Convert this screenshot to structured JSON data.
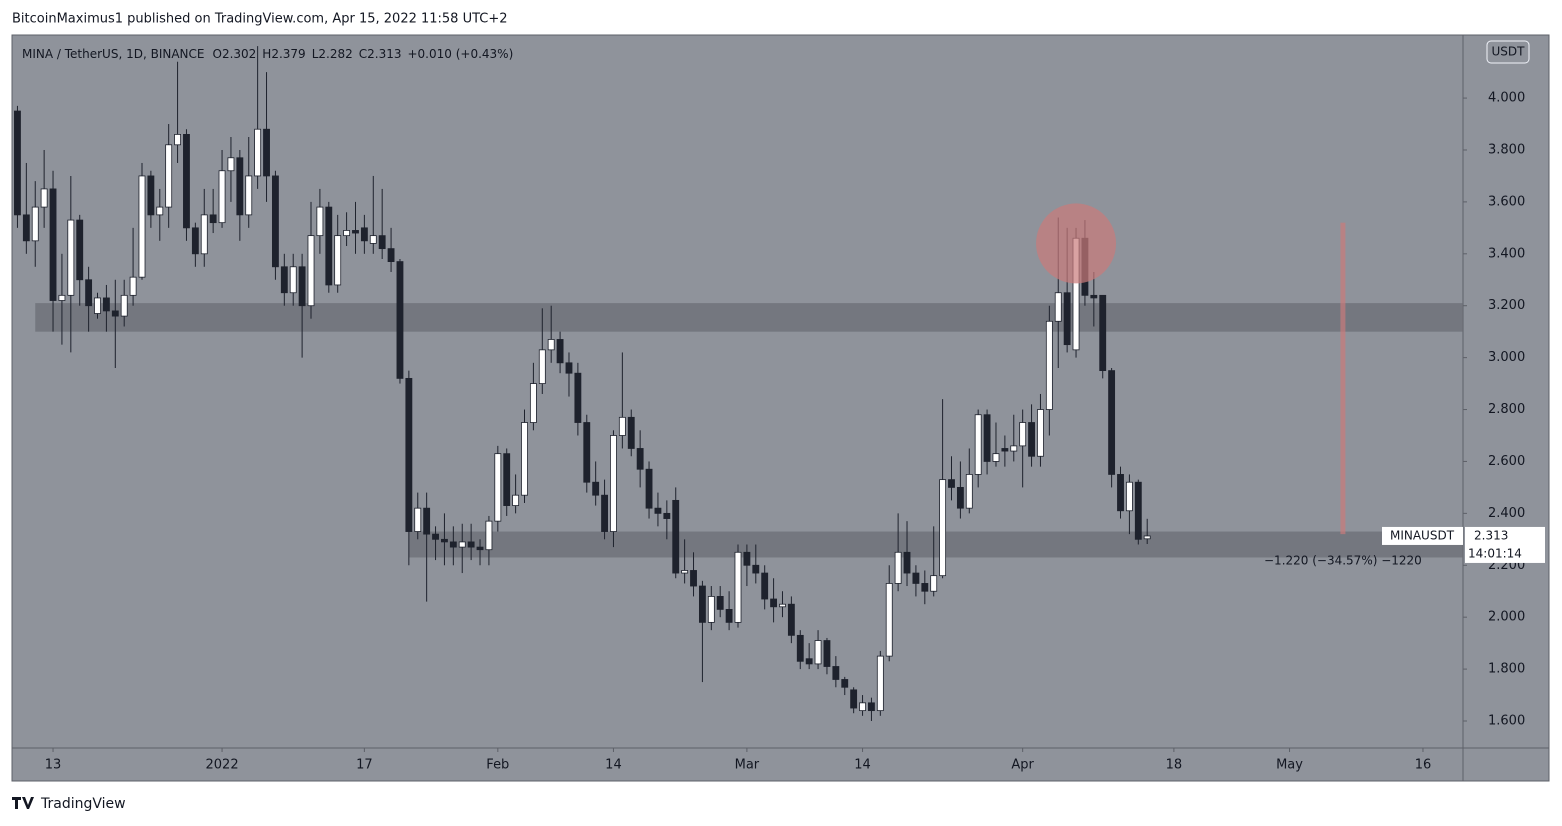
{
  "header": "BitcoinMaximus1 published on TradingView.com, Apr 15, 2022 11:58 UTC+2",
  "footer": "TradingView",
  "chart_data": {
    "type": "candlestick",
    "title": "MINA / TetherUS, 1D, BINANCE",
    "legend": [
      {
        "label": "O",
        "value": 2.302
      },
      {
        "label": "H",
        "value": 2.379
      },
      {
        "label": "L",
        "value": 2.282
      },
      {
        "label": "C",
        "value": 2.313
      }
    ],
    "change": "+0.010 (+0.43%)",
    "currency": "USDT",
    "symbol": "MINAUSDT",
    "last_price": 2.313,
    "countdown": "14:01:14",
    "measure": "−1.220 (−34.57%) −1220",
    "background": "#8f939b",
    "up_color": "#ffffff",
    "down_color": "#1e222d",
    "ylim": [
      1.496,
      4.243
    ],
    "yticks": [
      {
        "value": 1.6,
        "label": "1.600"
      },
      {
        "value": 1.8,
        "label": "1.800"
      },
      {
        "value": 2.0,
        "label": "2.000"
      },
      {
        "value": 2.2,
        "label": "2.200"
      },
      {
        "value": 2.4,
        "label": "2.400"
      },
      {
        "value": 2.6,
        "label": "2.600"
      },
      {
        "value": 2.8,
        "label": "2.800"
      },
      {
        "value": 3.0,
        "label": "3.000"
      },
      {
        "value": 3.2,
        "label": "3.200"
      },
      {
        "value": 3.4,
        "label": "3.400"
      },
      {
        "value": 3.6,
        "label": "3.600"
      },
      {
        "value": 3.8,
        "label": "3.800"
      },
      {
        "value": 4.0,
        "label": "4.000"
      }
    ],
    "xlim": [
      "2021-12-09",
      "2022-05-20"
    ],
    "xticks": [
      {
        "value": "2021-12-13",
        "label": "13"
      },
      {
        "value": "2022-01-01",
        "label": "2022"
      },
      {
        "value": "2022-01-17",
        "label": "17"
      },
      {
        "value": "2022-02-01",
        "label": "Feb"
      },
      {
        "value": "2022-02-14",
        "label": "14"
      },
      {
        "value": "2022-03-01",
        "label": "Mar"
      },
      {
        "value": "2022-03-14",
        "label": "14"
      },
      {
        "value": "2022-04-01",
        "label": "Apr"
      },
      {
        "value": "2022-04-18",
        "label": "18"
      },
      {
        "value": "2022-05-01",
        "label": "May"
      },
      {
        "value": "2022-05-16",
        "label": "16"
      }
    ],
    "zones": [
      {
        "low": 3.1,
        "high": 3.21,
        "start": "2021-12-11",
        "color": "#6b6e76"
      },
      {
        "low": 2.23,
        "high": 2.33,
        "start": "2022-01-22",
        "color": "#6b6e76"
      }
    ],
    "circle": {
      "date": "2022-04-07",
      "price": 3.44,
      "color": "#c97a7a"
    },
    "vline": {
      "date": "2022-05-07",
      "from": 2.32,
      "to": 3.52,
      "color": "#c97a7a"
    },
    "x": [
      "2021-12-09",
      "2021-12-10",
      "2021-12-11",
      "2021-12-12",
      "2021-12-13",
      "2021-12-14",
      "2021-12-15",
      "2021-12-16",
      "2021-12-17",
      "2021-12-18",
      "2021-12-19",
      "2021-12-20",
      "2021-12-21",
      "2021-12-22",
      "2021-12-23",
      "2021-12-24",
      "2021-12-25",
      "2021-12-26",
      "2021-12-27",
      "2021-12-28",
      "2021-12-29",
      "2021-12-30",
      "2021-12-31",
      "2022-01-01",
      "2022-01-02",
      "2022-01-03",
      "2022-01-04",
      "2022-01-05",
      "2022-01-06",
      "2022-01-07",
      "2022-01-08",
      "2022-01-09",
      "2022-01-10",
      "2022-01-11",
      "2022-01-12",
      "2022-01-13",
      "2022-01-14",
      "2022-01-15",
      "2022-01-16",
      "2022-01-17",
      "2022-01-18",
      "2022-01-19",
      "2022-01-20",
      "2022-01-21",
      "2022-01-22",
      "2022-01-23",
      "2022-01-24",
      "2022-01-25",
      "2022-01-26",
      "2022-01-27",
      "2022-01-28",
      "2022-01-29",
      "2022-01-30",
      "2022-01-31",
      "2022-02-01",
      "2022-02-02",
      "2022-02-03",
      "2022-02-04",
      "2022-02-05",
      "2022-02-06",
      "2022-02-07",
      "2022-02-08",
      "2022-02-09",
      "2022-02-10",
      "2022-02-11",
      "2022-02-12",
      "2022-02-13",
      "2022-02-14",
      "2022-02-15",
      "2022-02-16",
      "2022-02-17",
      "2022-02-18",
      "2022-02-19",
      "2022-02-20",
      "2022-02-21",
      "2022-02-22",
      "2022-02-23",
      "2022-02-24",
      "2022-02-25",
      "2022-02-26",
      "2022-02-27",
      "2022-02-28",
      "2022-03-01",
      "2022-03-02",
      "2022-03-03",
      "2022-03-04",
      "2022-03-05",
      "2022-03-06",
      "2022-03-07",
      "2022-03-08",
      "2022-03-09",
      "2022-03-10",
      "2022-03-11",
      "2022-03-12",
      "2022-03-13",
      "2022-03-14",
      "2022-03-15",
      "2022-03-16",
      "2022-03-17",
      "2022-03-18",
      "2022-03-19",
      "2022-03-20",
      "2022-03-21",
      "2022-03-22",
      "2022-03-23",
      "2022-03-24",
      "2022-03-25",
      "2022-03-26",
      "2022-03-27",
      "2022-03-28",
      "2022-03-29",
      "2022-03-30",
      "2022-03-31",
      "2022-04-01",
      "2022-04-02",
      "2022-04-03",
      "2022-04-04",
      "2022-04-05",
      "2022-04-06",
      "2022-04-07",
      "2022-04-08",
      "2022-04-09",
      "2022-04-10",
      "2022-04-11",
      "2022-04-12",
      "2022-04-13",
      "2022-04-14",
      "2022-04-15"
    ],
    "open": [
      3.95,
      3.55,
      3.45,
      3.58,
      3.65,
      3.22,
      3.24,
      3.53,
      3.3,
      3.17,
      3.23,
      3.18,
      3.16,
      3.24,
      3.31,
      3.7,
      3.55,
      3.58,
      3.82,
      3.86,
      3.5,
      3.4,
      3.55,
      3.52,
      3.72,
      3.77,
      3.55,
      3.7,
      3.88,
      3.7,
      3.35,
      3.25,
      3.35,
      3.2,
      3.47,
      3.58,
      3.28,
      3.47,
      3.49,
      3.5,
      3.44,
      3.47,
      3.42,
      3.37,
      2.92,
      2.33,
      2.42,
      2.32,
      2.3,
      2.29,
      2.27,
      2.29,
      2.27,
      2.26,
      2.37,
      2.63,
      2.43,
      2.47,
      2.75,
      2.9,
      3.03,
      3.07,
      2.98,
      2.94,
      2.75,
      2.52,
      2.47,
      2.33,
      2.7,
      2.77,
      2.65,
      2.57,
      2.42,
      2.4,
      2.45,
      2.17,
      2.18,
      2.12,
      1.98,
      2.08,
      2.03,
      1.98,
      2.25,
      2.2,
      2.17,
      2.07,
      2.04,
      2.05,
      1.93,
      1.84,
      1.82,
      1.91,
      1.81,
      1.76,
      1.72,
      1.64,
      1.67,
      1.64,
      1.85,
      2.13,
      2.25,
      2.17,
      2.13,
      2.1,
      2.16,
      2.53,
      2.5,
      2.42,
      2.55,
      2.78,
      2.6,
      2.65,
      2.64,
      2.66,
      2.75,
      2.62,
      2.8,
      3.14,
      3.25,
      3.03,
      3.46,
      3.24,
      3.24,
      2.95,
      2.55,
      2.41,
      2.52,
      2.302
    ],
    "high": [
      3.97,
      3.75,
      3.68,
      3.8,
      3.72,
      3.4,
      3.7,
      3.55,
      3.35,
      3.25,
      3.28,
      3.3,
      3.3,
      3.5,
      3.75,
      3.72,
      3.65,
      3.9,
      4.14,
      3.88,
      3.52,
      3.65,
      3.65,
      3.8,
      3.85,
      3.8,
      3.85,
      4.2,
      4.1,
      3.72,
      3.4,
      3.4,
      3.4,
      3.6,
      3.65,
      3.6,
      3.55,
      3.56,
      3.6,
      3.55,
      3.7,
      3.65,
      3.5,
      3.38,
      2.95,
      2.48,
      2.48,
      2.35,
      2.4,
      2.35,
      2.36,
      2.36,
      2.3,
      2.39,
      2.66,
      2.65,
      2.55,
      2.8,
      2.98,
      3.19,
      3.2,
      3.1,
      3.02,
      2.98,
      2.78,
      2.6,
      2.53,
      2.72,
      3.02,
      2.8,
      2.72,
      2.6,
      2.48,
      2.45,
      2.5,
      2.3,
      2.25,
      2.14,
      2.12,
      2.12,
      2.1,
      2.28,
      2.28,
      2.28,
      2.2,
      2.15,
      2.1,
      2.08,
      1.95,
      1.9,
      1.95,
      1.92,
      1.85,
      1.77,
      1.73,
      1.7,
      1.69,
      1.87,
      2.2,
      2.4,
      2.37,
      2.2,
      2.18,
      2.35,
      2.84,
      2.62,
      2.6,
      2.65,
      2.8,
      2.8,
      2.75,
      2.7,
      2.78,
      2.8,
      2.82,
      2.86,
      3.2,
      3.54,
      3.5,
      3.5,
      3.53,
      3.33,
      3.24,
      2.96,
      2.58,
      2.55,
      2.53,
      2.379
    ],
    "low": [
      3.5,
      3.4,
      3.35,
      3.5,
      3.1,
      3.05,
      3.02,
      3.2,
      3.1,
      3.15,
      3.1,
      2.96,
      3.12,
      3.2,
      3.3,
      3.5,
      3.45,
      3.5,
      3.75,
      3.45,
      3.35,
      3.35,
      3.48,
      3.5,
      3.6,
      3.45,
      3.5,
      3.65,
      3.6,
      3.3,
      3.2,
      3.2,
      3.0,
      3.15,
      3.4,
      3.25,
      3.25,
      3.43,
      3.4,
      3.4,
      3.4,
      3.38,
      3.33,
      2.9,
      2.2,
      2.3,
      2.06,
      2.22,
      2.2,
      2.2,
      2.17,
      2.22,
      2.2,
      2.2,
      2.33,
      2.39,
      2.4,
      2.44,
      2.72,
      2.86,
      2.98,
      2.94,
      2.85,
      2.7,
      2.48,
      2.43,
      2.3,
      2.27,
      2.65,
      2.62,
      2.5,
      2.38,
      2.35,
      2.3,
      2.15,
      2.13,
      2.08,
      1.75,
      1.95,
      2.0,
      1.95,
      1.96,
      2.12,
      2.13,
      2.03,
      1.98,
      2.0,
      1.9,
      1.8,
      1.8,
      1.8,
      1.78,
      1.73,
      1.7,
      1.63,
      1.62,
      1.6,
      1.62,
      1.83,
      2.1,
      2.12,
      2.08,
      2.05,
      2.08,
      2.15,
      2.45,
      2.38,
      2.4,
      2.5,
      2.55,
      2.58,
      2.58,
      2.6,
      2.5,
      2.58,
      2.58,
      2.7,
      2.96,
      3.02,
      3.0,
      3.2,
      3.12,
      2.92,
      2.5,
      2.38,
      2.32,
      2.28,
      2.282
    ],
    "close": [
      3.55,
      3.45,
      3.58,
      3.65,
      3.22,
      3.24,
      3.53,
      3.3,
      3.2,
      3.23,
      3.18,
      3.16,
      3.24,
      3.31,
      3.7,
      3.55,
      3.58,
      3.82,
      3.86,
      3.5,
      3.4,
      3.55,
      3.52,
      3.72,
      3.77,
      3.55,
      3.7,
      3.88,
      3.7,
      3.35,
      3.25,
      3.35,
      3.2,
      3.47,
      3.58,
      3.28,
      3.47,
      3.49,
      3.48,
      3.45,
      3.47,
      3.42,
      3.37,
      2.92,
      2.33,
      2.42,
      2.32,
      2.3,
      2.29,
      2.27,
      2.29,
      2.27,
      2.26,
      2.37,
      2.63,
      2.43,
      2.47,
      2.75,
      2.9,
      3.03,
      3.07,
      2.98,
      2.94,
      2.75,
      2.52,
      2.47,
      2.33,
      2.7,
      2.77,
      2.65,
      2.57,
      2.42,
      2.4,
      2.38,
      2.17,
      2.18,
      2.12,
      1.98,
      2.08,
      2.03,
      1.98,
      2.25,
      2.2,
      2.17,
      2.07,
      2.04,
      2.05,
      1.93,
      1.83,
      1.82,
      1.91,
      1.81,
      1.76,
      1.73,
      1.65,
      1.67,
      1.64,
      1.85,
      2.13,
      2.25,
      2.17,
      2.13,
      2.1,
      2.16,
      2.53,
      2.5,
      2.42,
      2.55,
      2.78,
      2.6,
      2.63,
      2.64,
      2.66,
      2.75,
      2.62,
      2.8,
      3.14,
      3.25,
      3.05,
      3.46,
      3.24,
      3.23,
      2.95,
      2.55,
      2.41,
      2.52,
      2.3,
      2.313
    ]
  }
}
